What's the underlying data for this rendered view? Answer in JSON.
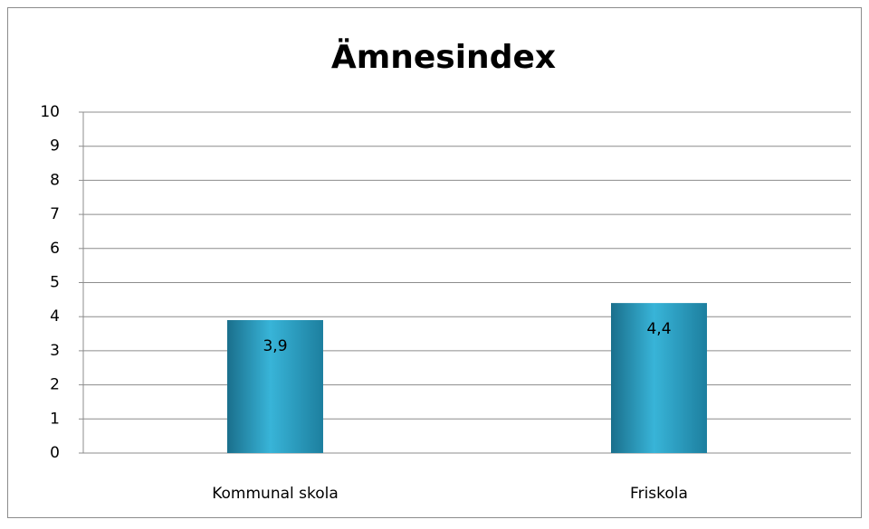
{
  "chart_data": {
    "type": "bar",
    "title": "Ämnesindex",
    "categories": [
      "Kommunal skola",
      "Friskola"
    ],
    "values": [
      3.9,
      4.4
    ],
    "value_labels": [
      "3,9",
      "4,4"
    ],
    "color": "#38b4d8",
    "ylim": [
      0,
      10
    ],
    "yticks": [
      0,
      1,
      2,
      3,
      4,
      5,
      6,
      7,
      8,
      9,
      10
    ],
    "grid": true
  }
}
